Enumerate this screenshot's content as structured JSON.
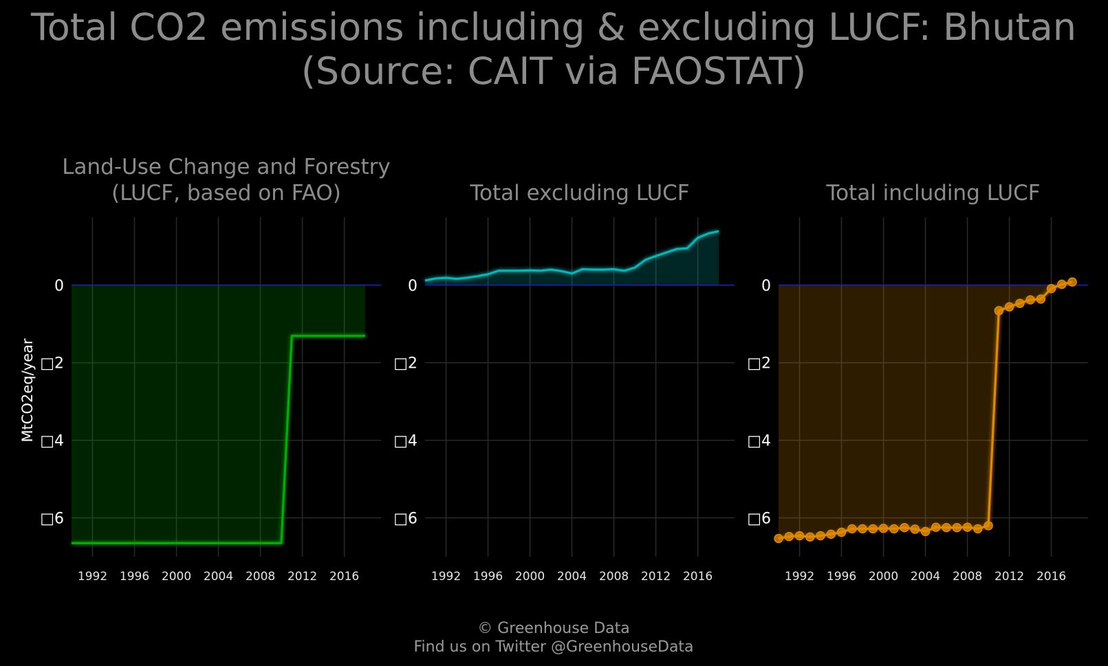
{
  "title_lines": [
    "Total CO2 emissions including & excluding LUCF: Bhutan",
    "(Source: CAIT via FAOSTAT)"
  ],
  "y_axis_label": "MtCO2eq/year",
  "footer_lines": [
    "© Greenhouse Data",
    "Find us on Twitter @GreenhouseData"
  ],
  "chart_data": [
    {
      "type": "area",
      "title_lines": [
        "Land-Use Change and Forestry",
        "(LUCF, based on FAO)"
      ],
      "color": "#00b000",
      "markers": false,
      "x": [
        1990,
        1991,
        1992,
        1993,
        1994,
        1995,
        1996,
        1997,
        1998,
        1999,
        2000,
        2001,
        2002,
        2003,
        2004,
        2005,
        2006,
        2007,
        2008,
        2009,
        2010,
        2011,
        2012,
        2013,
        2014,
        2015,
        2016,
        2017,
        2018
      ],
      "values": [
        -6.65,
        -6.65,
        -6.65,
        -6.65,
        -6.65,
        -6.65,
        -6.65,
        -6.65,
        -6.65,
        -6.65,
        -6.65,
        -6.65,
        -6.65,
        -6.65,
        -6.65,
        -6.65,
        -6.65,
        -6.65,
        -6.65,
        -6.65,
        -6.65,
        -1.31,
        -1.31,
        -1.31,
        -1.31,
        -1.31,
        -1.31,
        -1.31,
        -1.31
      ],
      "xlim": [
        1990,
        2019.5
      ],
      "ylim": [
        -7.0,
        1.75
      ],
      "yticks": [
        0,
        -2,
        -4,
        -6
      ],
      "ytick_labels": [
        "0",
        "□2",
        "□4",
        "□6"
      ],
      "xticks": [
        1992,
        1996,
        2000,
        2004,
        2008,
        2012,
        2016
      ],
      "xtick_labels": [
        "1992",
        "1996",
        "2000",
        "2004",
        "2008",
        "2012",
        "2016"
      ],
      "grid": true
    },
    {
      "type": "area",
      "title_lines": [
        "Total excluding LUCF"
      ],
      "color": "#00b8b8",
      "markers": false,
      "x": [
        1990,
        1991,
        1992,
        1993,
        1994,
        1995,
        1996,
        1997,
        1998,
        1999,
        2000,
        2001,
        2002,
        2003,
        2004,
        2005,
        2006,
        2007,
        2008,
        2009,
        2010,
        2011,
        2012,
        2013,
        2014,
        2015,
        2016,
        2017,
        2018
      ],
      "values": [
        0.12,
        0.17,
        0.19,
        0.16,
        0.19,
        0.23,
        0.28,
        0.37,
        0.37,
        0.37,
        0.38,
        0.37,
        0.4,
        0.36,
        0.3,
        0.41,
        0.4,
        0.4,
        0.41,
        0.37,
        0.45,
        0.65,
        0.75,
        0.84,
        0.93,
        0.95,
        1.22,
        1.33,
        1.39
      ],
      "xlim": [
        1990,
        2019.5
      ],
      "ylim": [
        -7.0,
        1.75
      ],
      "yticks": [
        0,
        -2,
        -4,
        -6
      ],
      "ytick_labels": [
        "0",
        "□2",
        "□4",
        "□6"
      ],
      "xticks": [
        1992,
        1996,
        2000,
        2004,
        2008,
        2012,
        2016
      ],
      "xtick_labels": [
        "1992",
        "1996",
        "2000",
        "2004",
        "2008",
        "2012",
        "2016"
      ],
      "grid": true
    },
    {
      "type": "area",
      "title_lines": [
        "Total including LUCF"
      ],
      "color": "#e08a00",
      "markers": true,
      "x": [
        1990,
        1991,
        1992,
        1993,
        1994,
        1995,
        1996,
        1997,
        1998,
        1999,
        2000,
        2001,
        2002,
        2003,
        2004,
        2005,
        2006,
        2007,
        2008,
        2009,
        2010,
        2011,
        2012,
        2013,
        2014,
        2015,
        2016,
        2017,
        2018
      ],
      "values": [
        -6.53,
        -6.48,
        -6.46,
        -6.49,
        -6.46,
        -6.42,
        -6.37,
        -6.28,
        -6.28,
        -6.28,
        -6.27,
        -6.28,
        -6.25,
        -6.29,
        -6.35,
        -6.24,
        -6.25,
        -6.25,
        -6.24,
        -6.28,
        -6.2,
        -0.66,
        -0.56,
        -0.47,
        -0.38,
        -0.36,
        -0.09,
        0.02,
        0.08
      ],
      "xlim": [
        1990,
        2019.5
      ],
      "ylim": [
        -7.0,
        1.75
      ],
      "yticks": [
        0,
        -2,
        -4,
        -6
      ],
      "ytick_labels": [
        "0",
        "□2",
        "□4",
        "□6"
      ],
      "xticks": [
        1992,
        1996,
        2000,
        2004,
        2008,
        2012,
        2016
      ],
      "xtick_labels": [
        "1992",
        "1996",
        "2000",
        "2004",
        "2008",
        "2012",
        "2016"
      ],
      "grid": true
    }
  ]
}
